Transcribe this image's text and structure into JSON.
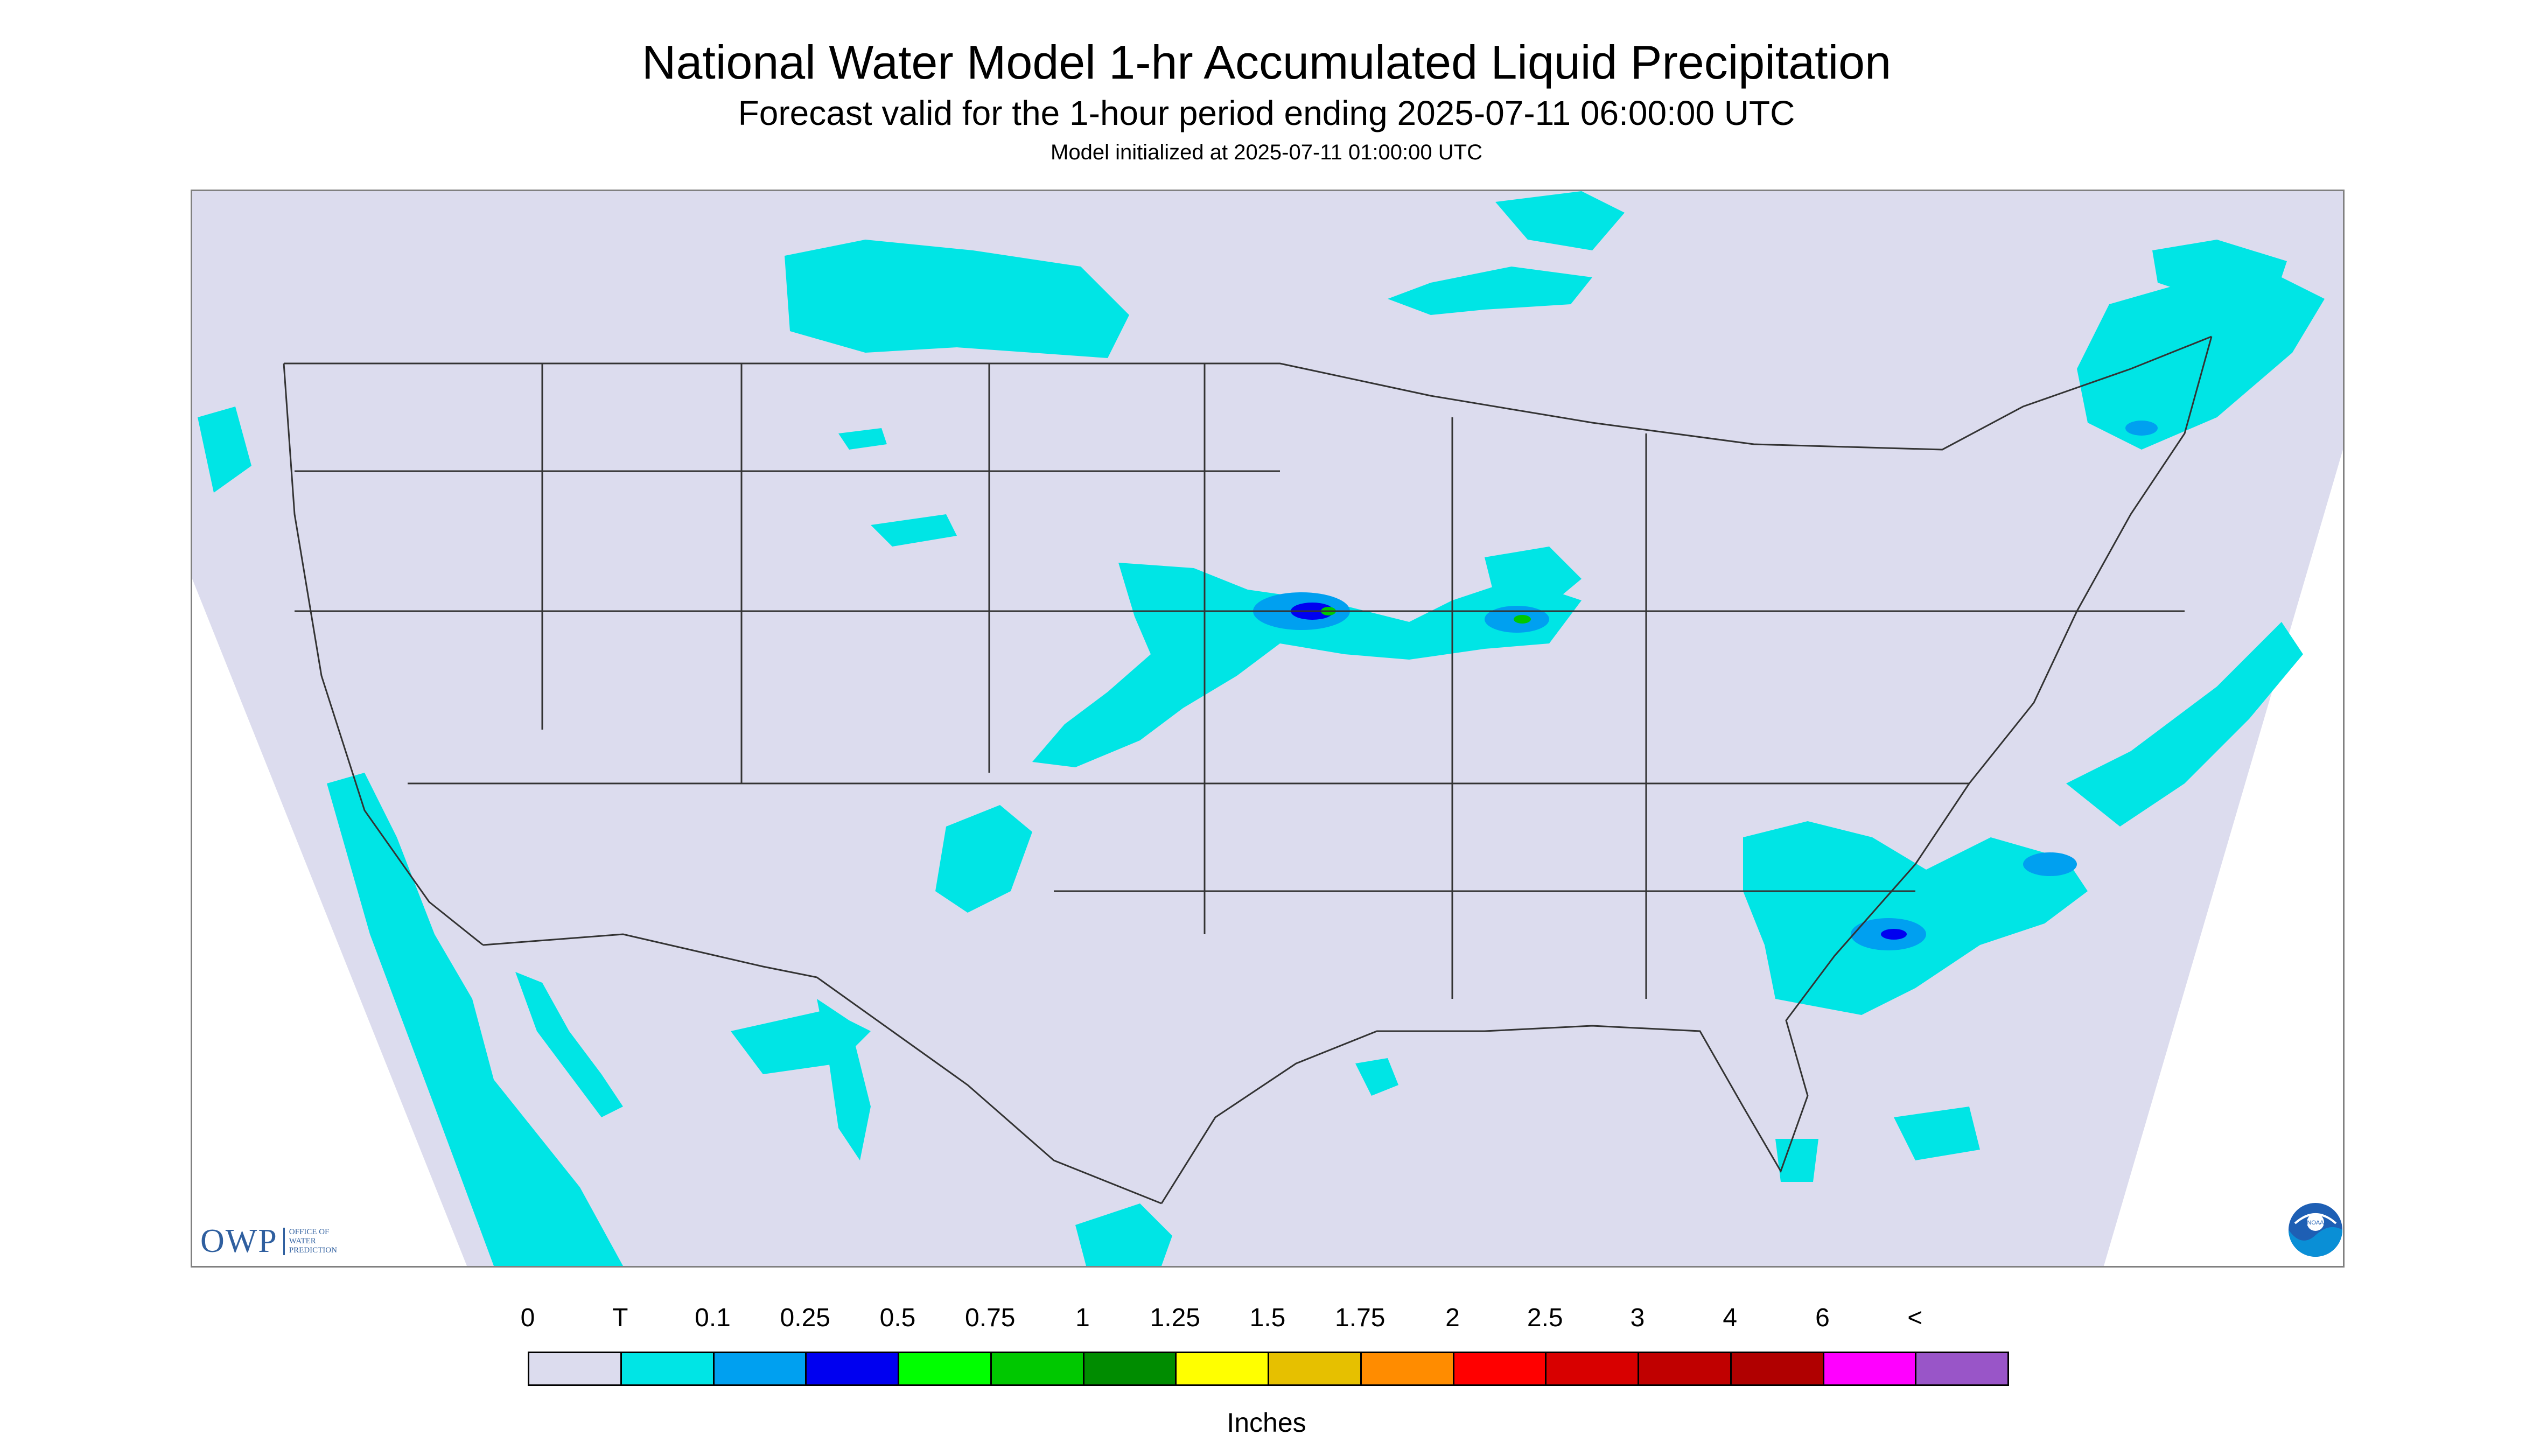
{
  "header": {
    "title": "National Water Model 1-hr Accumulated Liquid Precipitation",
    "subtitle": "Forecast valid for the 1-hour period ending 2025-07-11 06:00:00 UTC",
    "init_line": "Model initialized at 2025-07-11 01:00:00 UTC"
  },
  "branding": {
    "owp_mark": "OWP",
    "owp_words": [
      "OFFICE OF",
      "WATER",
      "PREDICTION"
    ],
    "noaa_label": "NOAA"
  },
  "colors": {
    "background_zero": "#dcdcee",
    "trace": "#00e5e5",
    "outside_grid": "#ffffff",
    "state_lines": "#333333"
  },
  "legend": {
    "labels": [
      "0",
      "T",
      "0.1",
      "0.25",
      "0.5",
      "0.75",
      "1",
      "1.25",
      "1.5",
      "1.75",
      "2",
      "2.5",
      "3",
      "4",
      "6",
      "<"
    ],
    "colors": [
      "#dcdcee",
      "#00e5e5",
      "#00a0f0",
      "#0000f0",
      "#00ff00",
      "#00c800",
      "#008c00",
      "#ffff00",
      "#e6c000",
      "#ff8c00",
      "#ff0000",
      "#d80000",
      "#c00000",
      "#b00000",
      "#ff00ff",
      "#9955c8"
    ],
    "units": "Inches"
  }
}
